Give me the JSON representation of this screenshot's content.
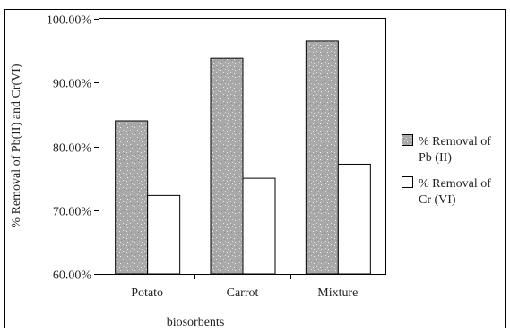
{
  "chart_data": {
    "type": "bar",
    "categories": [
      "Potato",
      "Carrot",
      "Mixture"
    ],
    "series": [
      {
        "name": "% Removal of Pb (II)",
        "name_lines": [
          "% Removal of",
          "Pb (II)"
        ],
        "values": [
          84.0,
          93.8,
          96.5
        ],
        "color": "#a9a9a9",
        "pattern": "speckled"
      },
      {
        "name": "% Removal of Cr (VI)",
        "name_lines": [
          "% Removal of",
          "Cr (VI)"
        ],
        "values": [
          72.3,
          75.0,
          77.2
        ],
        "color": "#ffffff"
      }
    ],
    "xlabel": "biosorbents",
    "ylabel": "% Removal of Pb(II) and Cr(VI)",
    "ylim": [
      60,
      100
    ],
    "yticks": [
      60,
      70,
      80,
      90,
      100
    ],
    "ytick_labels": [
      "60.00%",
      "70.00%",
      "80.00%",
      "90.00%",
      "100.00%"
    ],
    "grid": false,
    "legend": "right"
  }
}
